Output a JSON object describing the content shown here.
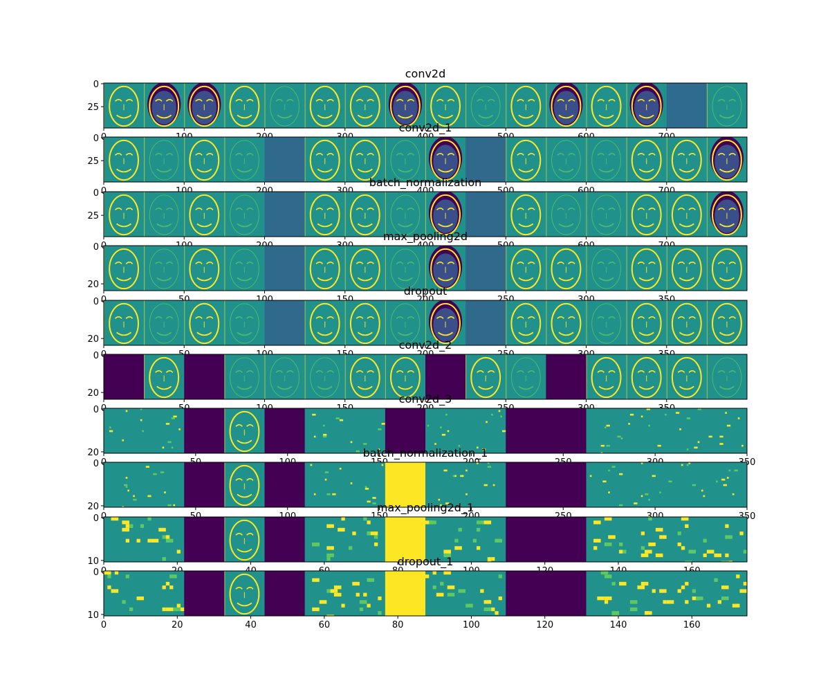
{
  "colors": {
    "viridis": [
      "#440154",
      "#3b528b",
      "#21918c",
      "#5ec962",
      "#fde725"
    ],
    "frame": "#000000"
  },
  "chart_data": [
    {
      "type": "heatmap",
      "title": "conv2d",
      "xlim": [
        0,
        800
      ],
      "ylim": [
        49,
        0
      ],
      "xticks": [
        0,
        100,
        200,
        300,
        400,
        500,
        600,
        700
      ],
      "yticks": [
        0,
        25
      ],
      "channels": 16,
      "size": 50,
      "tile_kinds": [
        "face",
        "dark-face",
        "dark-face",
        "face",
        "faint",
        "face",
        "face",
        "dark-face",
        "face",
        "faint",
        "face",
        "dark-face",
        "face",
        "dark-face",
        "blank",
        "faint"
      ]
    },
    {
      "type": "heatmap",
      "title": "conv2d_1",
      "xlim": [
        0,
        800
      ],
      "ylim": [
        49,
        0
      ],
      "xticks": [
        0,
        100,
        200,
        300,
        400,
        500,
        600,
        700
      ],
      "yticks": [
        0,
        25
      ],
      "channels": 16,
      "size": 50,
      "tile_kinds": [
        "face",
        "faint",
        "face",
        "faint",
        "flat",
        "face",
        "face",
        "faint",
        "dark-face",
        "flat",
        "face",
        "faint",
        "faint",
        "face",
        "face",
        "dark-face"
      ]
    },
    {
      "type": "heatmap",
      "title": "batch_normalization",
      "xlim": [
        0,
        800
      ],
      "ylim": [
        49,
        0
      ],
      "xticks": [
        0,
        100,
        200,
        300,
        400,
        500,
        600,
        700
      ],
      "yticks": [
        0,
        25
      ],
      "channels": 16,
      "size": 50,
      "tile_kinds": [
        "face",
        "faint",
        "face",
        "faint",
        "flat",
        "face",
        "face",
        "faint",
        "dark-face",
        "flat",
        "face",
        "faint",
        "faint",
        "face",
        "face",
        "dark-face"
      ]
    },
    {
      "type": "heatmap",
      "title": "max_pooling2d",
      "xlim": [
        0,
        400
      ],
      "ylim": [
        24,
        0
      ],
      "xticks": [
        0,
        50,
        100,
        150,
        200,
        250,
        300,
        350
      ],
      "yticks": [
        0,
        20
      ],
      "channels": 16,
      "size": 25,
      "tile_kinds": [
        "face",
        "faint",
        "face",
        "faint",
        "flat",
        "face",
        "face",
        "faint",
        "dark-face",
        "flat",
        "face",
        "face",
        "faint",
        "face",
        "face",
        "face"
      ]
    },
    {
      "type": "heatmap",
      "title": "dropout",
      "xlim": [
        0,
        400
      ],
      "ylim": [
        24,
        0
      ],
      "xticks": [
        0,
        50,
        100,
        150,
        200,
        250,
        300,
        350
      ],
      "yticks": [
        0,
        20
      ],
      "channels": 16,
      "size": 25,
      "tile_kinds": [
        "face",
        "faint",
        "face",
        "faint",
        "flat",
        "face",
        "face",
        "faint",
        "dark-face",
        "flat",
        "face",
        "face",
        "faint",
        "face",
        "face",
        "face"
      ]
    },
    {
      "type": "heatmap",
      "title": "conv2d_2",
      "xlim": [
        0,
        400
      ],
      "ylim": [
        24,
        0
      ],
      "xticks": [
        0,
        50,
        100,
        150,
        200,
        250,
        300,
        350
      ],
      "yticks": [
        0,
        20
      ],
      "channels": 16,
      "size": 25,
      "tile_kinds": [
        "dead",
        "face",
        "dead",
        "faint",
        "faint",
        "faint",
        "face",
        "face",
        "dead",
        "face",
        "faint",
        "dead",
        "face",
        "face",
        "face",
        "faint"
      ]
    },
    {
      "type": "heatmap",
      "title": "conv2d_3",
      "xlim": [
        0,
        350
      ],
      "ylim": [
        21,
        0
      ],
      "xticks": [
        0,
        50,
        100,
        150,
        200,
        250,
        300,
        350
      ],
      "yticks": [
        0,
        20
      ],
      "channels": 16,
      "size": 22,
      "tile_kinds": [
        "sparse",
        "sparse",
        "dead",
        "face",
        "dead",
        "sparse",
        "sparse",
        "dead",
        "sparse",
        "sparse",
        "dead",
        "dead",
        "sparse",
        "sparse",
        "sparse",
        "sparse"
      ]
    },
    {
      "type": "heatmap",
      "title": "batch_normalization_1",
      "xlim": [
        0,
        350
      ],
      "ylim": [
        21,
        0
      ],
      "xticks": [
        0,
        50,
        100,
        150,
        200,
        250,
        300,
        350
      ],
      "yticks": [
        0,
        20
      ],
      "channels": 16,
      "size": 22,
      "tile_kinds": [
        "sparse",
        "sparse",
        "dead",
        "face",
        "dead",
        "sparse",
        "sparse",
        "bright",
        "sparse",
        "sparse",
        "dead",
        "dead",
        "sparse",
        "sparse",
        "sparse",
        "sparse"
      ]
    },
    {
      "type": "heatmap",
      "title": "max_pooling2d_1",
      "xlim": [
        0,
        175
      ],
      "ylim": [
        10.5,
        0
      ],
      "xticks": [
        0,
        20,
        40,
        60,
        80,
        100,
        120,
        140,
        160
      ],
      "yticks": [
        0,
        10
      ],
      "channels": 16,
      "size": 11,
      "tile_kinds": [
        "sparse",
        "sparse",
        "dead",
        "face",
        "dead",
        "sparse",
        "sparse",
        "bright",
        "sparse",
        "sparse",
        "dead",
        "dead",
        "sparse",
        "sparse",
        "sparse",
        "sparse"
      ]
    },
    {
      "type": "heatmap",
      "title": "dropout_1",
      "xlim": [
        0,
        175
      ],
      "ylim": [
        10.5,
        0
      ],
      "xticks": [
        0,
        20,
        40,
        60,
        80,
        100,
        120,
        140,
        160
      ],
      "yticks": [
        0,
        10
      ],
      "channels": 16,
      "size": 11,
      "tile_kinds": [
        "sparse",
        "sparse",
        "dead",
        "face",
        "dead",
        "sparse",
        "sparse",
        "bright",
        "sparse",
        "sparse",
        "dead",
        "dead",
        "sparse",
        "sparse",
        "sparse",
        "sparse"
      ]
    }
  ]
}
